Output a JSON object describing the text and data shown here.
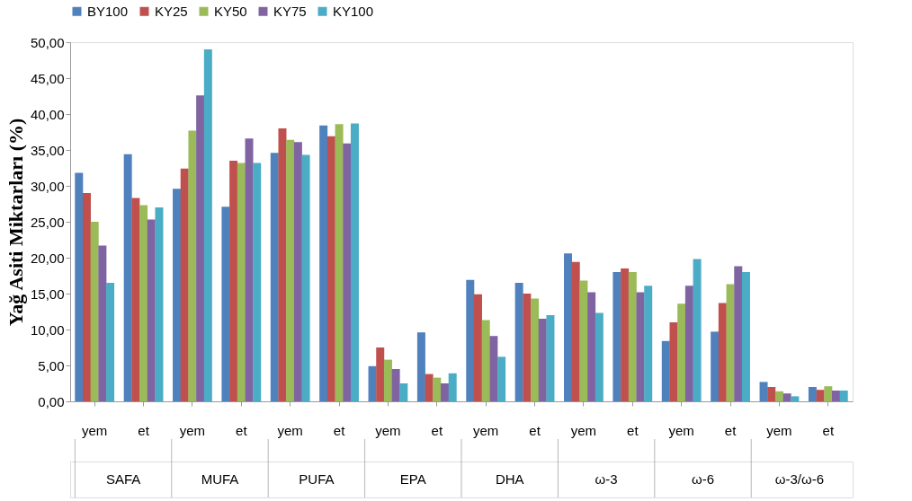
{
  "chart_data": {
    "type": "bar",
    "ylabel": "Yağ Asiti Miktarları (%)",
    "categories": [
      "yem",
      "et",
      "yem",
      "et",
      "yem",
      "et",
      "yem",
      "et",
      "yem",
      "et",
      "yem",
      "et",
      "yem",
      "et",
      "yem",
      "et"
    ],
    "annotations": [
      "SAFA",
      "MUFA",
      "PUFA",
      "EPA",
      "DHA",
      "ω-3",
      "ω-6",
      "ω-3/ω-6"
    ],
    "series": [
      {
        "name": "BY100",
        "color": "#4f81bd",
        "values": [
          31.8,
          34.4,
          29.6,
          27.1,
          34.6,
          38.4,
          4.9,
          9.6,
          16.9,
          16.5,
          20.6,
          18.0,
          8.4,
          9.7,
          2.7,
          2.0
        ]
      },
      {
        "name": "KY25",
        "color": "#c0504d",
        "values": [
          29.0,
          28.3,
          32.4,
          33.5,
          38.0,
          36.9,
          7.5,
          3.8,
          14.9,
          15.0,
          19.4,
          18.5,
          11.0,
          13.7,
          2.0,
          1.6
        ]
      },
      {
        "name": "KY50",
        "color": "#9bbb59",
        "values": [
          25.0,
          27.3,
          37.7,
          33.2,
          36.4,
          38.6,
          5.8,
          3.3,
          11.3,
          14.3,
          16.8,
          18.0,
          13.6,
          16.3,
          1.4,
          2.1
        ]
      },
      {
        "name": "KY75",
        "color": "#8064a2",
        "values": [
          21.7,
          25.3,
          42.6,
          36.6,
          36.1,
          35.9,
          4.5,
          2.5,
          9.1,
          11.5,
          15.2,
          15.2,
          16.1,
          18.8,
          1.1,
          1.5
        ]
      },
      {
        "name": "KY100",
        "color": "#4bacc6",
        "values": [
          16.5,
          27.0,
          49.0,
          33.2,
          34.3,
          38.7,
          2.5,
          3.9,
          6.2,
          12.0,
          12.3,
          16.1,
          19.8,
          18.0,
          0.7,
          1.5
        ]
      }
    ],
    "ylim": [
      0,
      50
    ],
    "yticks": [
      {
        "value": 0,
        "label": "0,00"
      },
      {
        "value": 5,
        "label": "5,00"
      },
      {
        "value": 10,
        "label": "10,00"
      },
      {
        "value": 15,
        "label": "15,00"
      },
      {
        "value": 20,
        "label": "20,00"
      },
      {
        "value": 25,
        "label": "25,00"
      },
      {
        "value": 30,
        "label": "30,00"
      },
      {
        "value": 35,
        "label": "35,00"
      },
      {
        "value": 40,
        "label": "40,00"
      },
      {
        "value": 45,
        "label": "45,00"
      },
      {
        "value": 50,
        "label": "50,00"
      }
    ],
    "grid": false,
    "legend": "top"
  }
}
